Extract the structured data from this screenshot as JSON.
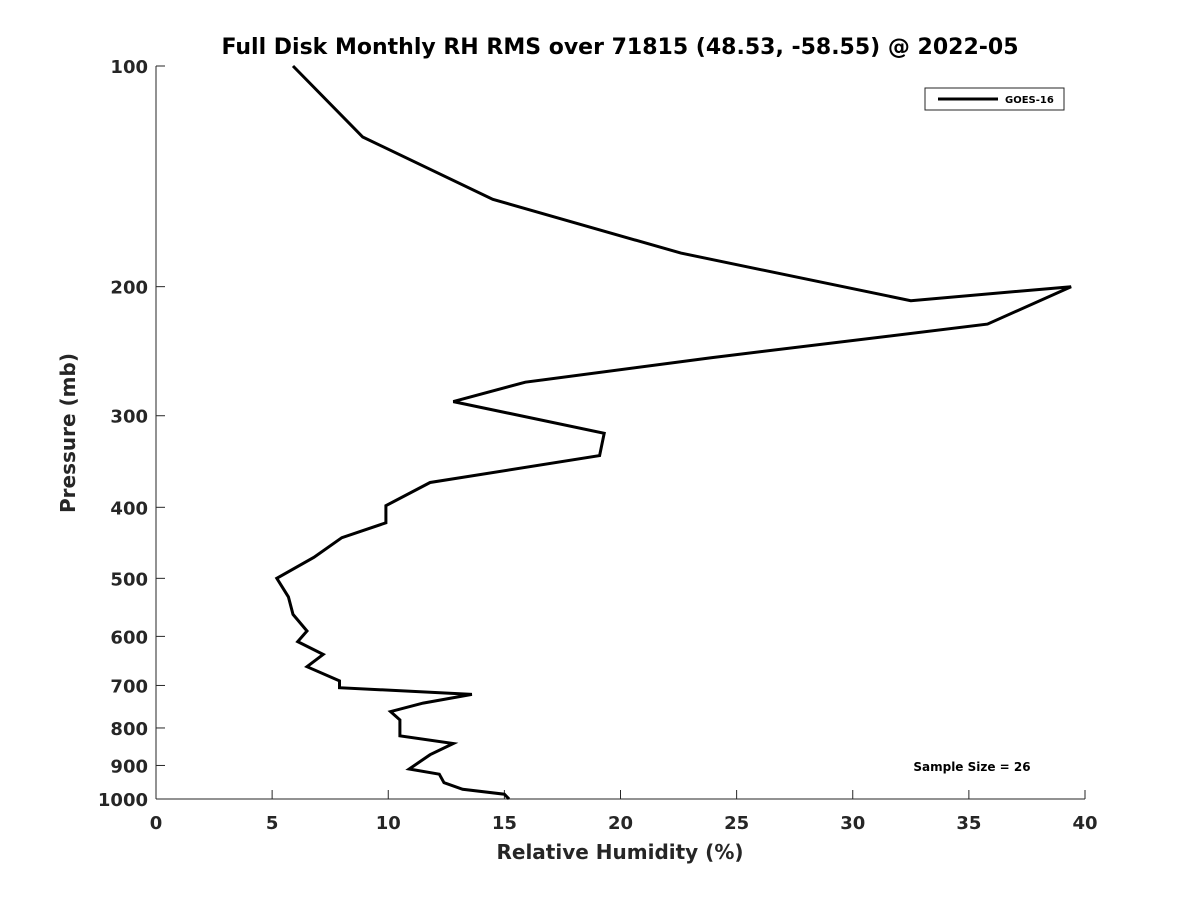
{
  "chart_data": {
    "type": "line",
    "title": "Full Disk Monthly RH RMS over 71815 (48.53, -58.55) @ 2022-05",
    "xlabel": "Relative Humidity (%)",
    "ylabel": "Pressure (mb)",
    "xlim": [
      0,
      40
    ],
    "ylim": [
      100,
      1000
    ],
    "y_scale": "log",
    "y_reversed": true,
    "xticks": [
      "0",
      "5",
      "10",
      "15",
      "20",
      "25",
      "30",
      "35",
      "40"
    ],
    "yticks": [
      "100",
      "200",
      "300",
      "400",
      "500",
      "600",
      "700",
      "800",
      "900",
      "1000"
    ],
    "grid": false,
    "legend_position": "top-right",
    "annotation": "Sample Size = 26",
    "series": [
      {
        "name": "GOES-16",
        "color": "#000000",
        "points": [
          [
            5.9,
            100
          ],
          [
            8.9,
            125
          ],
          [
            14.5,
            152
          ],
          [
            22.6,
            180
          ],
          [
            32.5,
            209
          ],
          [
            39.4,
            200
          ],
          [
            35.8,
            225
          ],
          [
            23.9,
            250
          ],
          [
            15.9,
            270
          ],
          [
            12.8,
            287
          ],
          [
            19.3,
            317
          ],
          [
            19.1,
            340
          ],
          [
            11.8,
            370
          ],
          [
            9.9,
            398
          ],
          [
            9.9,
            420
          ],
          [
            8.0,
            440
          ],
          [
            6.8,
            468
          ],
          [
            5.2,
            500
          ],
          [
            5.7,
            530
          ],
          [
            5.9,
            560
          ],
          [
            6.5,
            590
          ],
          [
            6.1,
            610
          ],
          [
            7.2,
            635
          ],
          [
            6.5,
            660
          ],
          [
            7.9,
            690
          ],
          [
            7.9,
            705
          ],
          [
            13.6,
            720
          ],
          [
            11.5,
            740
          ],
          [
            10.1,
            760
          ],
          [
            10.5,
            780
          ],
          [
            10.5,
            820
          ],
          [
            12.8,
            840
          ],
          [
            11.8,
            870
          ],
          [
            10.9,
            910
          ],
          [
            12.2,
            925
          ],
          [
            12.4,
            950
          ],
          [
            13.2,
            970
          ],
          [
            15.0,
            985
          ],
          [
            15.2,
            1000
          ]
        ]
      }
    ]
  }
}
